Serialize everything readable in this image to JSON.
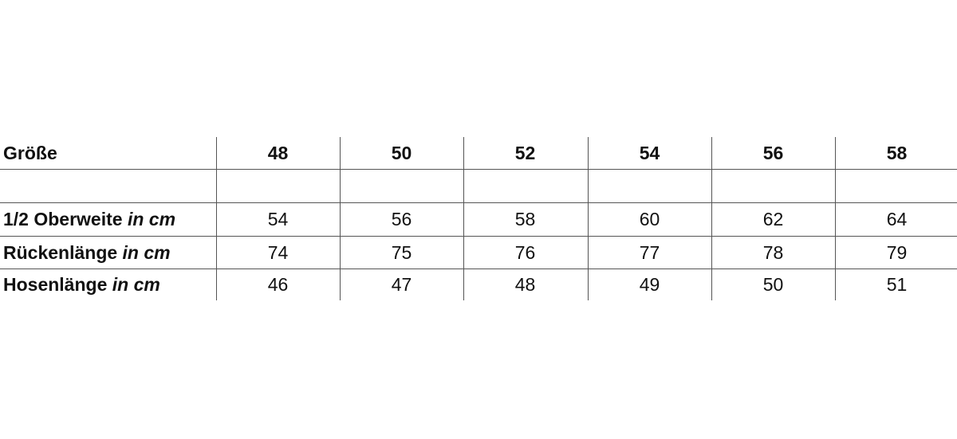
{
  "table": {
    "header": {
      "label": "Größe",
      "sizes": [
        "48",
        "50",
        "52",
        "54",
        "56",
        "58"
      ]
    },
    "unit_suffix": "in cm",
    "rows": [
      {
        "label": "1/2 Oberweite",
        "values": [
          "54",
          "56",
          "58",
          "60",
          "62",
          "64"
        ]
      },
      {
        "label": "Rückenlänge",
        "values": [
          "74",
          "75",
          "76",
          "77",
          "78",
          "79"
        ]
      },
      {
        "label": "Hosenlänge",
        "values": [
          "46",
          "47",
          "48",
          "49",
          "50",
          "51"
        ]
      }
    ]
  }
}
